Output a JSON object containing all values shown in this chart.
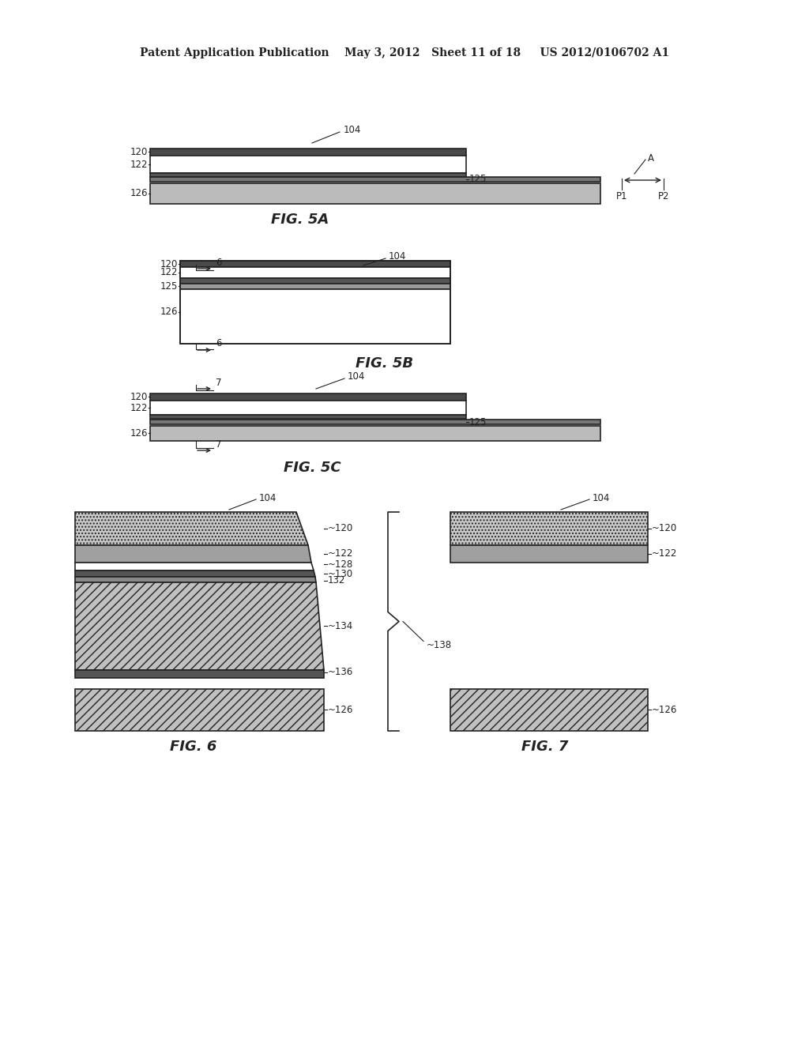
{
  "header": "Patent Application Publication    May 3, 2012   Sheet 11 of 18     US 2012/0106702 A1",
  "fig5a": "FIG. 5A",
  "fig5b": "FIG. 5B",
  "fig5c": "FIG. 5C",
  "fig6": "FIG. 6",
  "fig7": "FIG. 7",
  "bg": "#ffffff",
  "lc": "#222222",
  "gray_dark": "#444444",
  "gray_med": "#888888",
  "gray_light": "#cccccc",
  "gray_hatch": "#b0b0b0"
}
